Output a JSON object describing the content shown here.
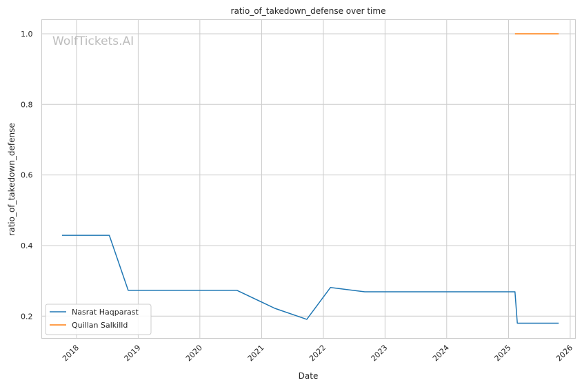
{
  "watermark": "WolfTickets.AI",
  "chart_data": {
    "type": "line",
    "title": "ratio_of_takedown_defense over time",
    "xlabel": "Date",
    "ylabel": "ratio_of_takedown_defense",
    "x_ticks": [
      "2018",
      "2019",
      "2020",
      "2021",
      "2022",
      "2023",
      "2024",
      "2025",
      "2026"
    ],
    "y_ticks": [
      "0.2",
      "0.4",
      "0.6",
      "0.8",
      "1.0"
    ],
    "xlim": [
      "2017-06-09",
      "2026-02-01"
    ],
    "ylim": [
      0.137,
      1.04
    ],
    "grid": true,
    "legend_position": "lower-left",
    "series": [
      {
        "name": "Nasrat Haqparast",
        "color": "#1f77b4",
        "points": [
          {
            "x": "2017-10-07",
            "y": 0.429
          },
          {
            "x": "2018-07-14",
            "y": 0.429
          },
          {
            "x": "2018-11-03",
            "y": 0.273
          },
          {
            "x": "2020-08-08",
            "y": 0.273
          },
          {
            "x": "2021-03-20",
            "y": 0.222
          },
          {
            "x": "2021-09-25",
            "y": 0.191
          },
          {
            "x": "2022-02-12",
            "y": 0.281
          },
          {
            "x": "2022-09-03",
            "y": 0.269
          },
          {
            "x": "2025-02-08",
            "y": 0.269
          },
          {
            "x": "2025-02-22",
            "y": 0.18
          },
          {
            "x": "2025-10-25",
            "y": 0.18
          }
        ]
      },
      {
        "name": "Quillan Salkilld",
        "color": "#ff7f0e",
        "points": [
          {
            "x": "2025-02-08",
            "y": 1.0
          },
          {
            "x": "2025-10-25",
            "y": 1.0
          }
        ]
      }
    ]
  }
}
